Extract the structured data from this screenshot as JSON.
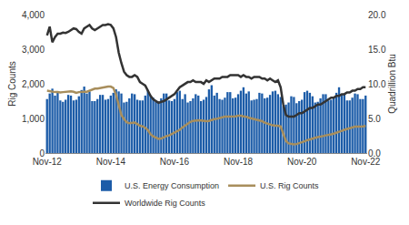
{
  "chart_data": {
    "type": "bar",
    "ylabel": "Rig Counts",
    "y2label": "Quadrillion Btu",
    "categories": [
      "Nov-12",
      null,
      null,
      null,
      null,
      null,
      null,
      null,
      null,
      null,
      null,
      null,
      null,
      null,
      null,
      null,
      null,
      null,
      null,
      null,
      null,
      null,
      null,
      null,
      "Nov-14",
      null,
      null,
      null,
      null,
      null,
      null,
      null,
      null,
      null,
      null,
      null,
      null,
      null,
      null,
      null,
      null,
      null,
      null,
      null,
      null,
      null,
      null,
      null,
      "Nov-16",
      null,
      null,
      null,
      null,
      null,
      null,
      null,
      null,
      null,
      null,
      null,
      null,
      null,
      null,
      null,
      null,
      null,
      null,
      null,
      null,
      null,
      null,
      null,
      "Nov-18",
      null,
      null,
      null,
      null,
      null,
      null,
      null,
      null,
      null,
      null,
      null,
      null,
      null,
      null,
      null,
      null,
      null,
      null,
      null,
      null,
      null,
      null,
      null,
      "Nov-20",
      null,
      null,
      null,
      null,
      null,
      null,
      null,
      null,
      null,
      null,
      null,
      null,
      null,
      null,
      null,
      null,
      null,
      null,
      null,
      null,
      null,
      null,
      null,
      "Nov-22"
    ],
    "series": [
      {
        "name": "U.S. Energy Consumption",
        "type": "bar",
        "color": "#1c5ca8",
        "axis": "y2",
        "values": [
          7.8,
          8.6,
          9.3,
          8.3,
          8.7,
          7.6,
          7.4,
          7.7,
          8.4,
          8.3,
          7.6,
          7.7,
          8.2,
          9.1,
          9.6,
          8.6,
          8.9,
          7.5,
          7.5,
          7.8,
          8.4,
          8.4,
          7.7,
          7.8,
          8.3,
          8.7,
          9.2,
          8.9,
          8.6,
          7.3,
          7.4,
          7.9,
          8.6,
          8.5,
          7.7,
          7.6,
          7.6,
          8.3,
          9.1,
          8.3,
          8.0,
          7.4,
          7.4,
          7.9,
          8.6,
          8.6,
          7.6,
          7.5,
          7.8,
          8.8,
          9.0,
          7.8,
          8.5,
          7.3,
          7.5,
          7.9,
          8.5,
          8.3,
          7.5,
          7.7,
          8.1,
          9.2,
          9.8,
          8.3,
          8.7,
          7.8,
          7.7,
          8.0,
          8.8,
          8.8,
          7.9,
          8.0,
          8.5,
          9.0,
          9.5,
          8.6,
          8.9,
          7.6,
          7.7,
          7.8,
          8.7,
          8.6,
          7.9,
          8.0,
          8.4,
          8.9,
          9.0,
          8.5,
          8.1,
          6.8,
          7.0,
          7.3,
          8.2,
          8.1,
          7.2,
          7.5,
          7.7,
          8.8,
          9.0,
          8.7,
          8.2,
          7.3,
          7.4,
          7.9,
          8.5,
          8.5,
          7.6,
          7.7,
          8.0,
          8.7,
          9.5,
          8.5,
          8.5,
          7.6,
          7.6,
          8.0,
          8.6,
          8.5,
          7.8,
          7.8,
          8.3
        ]
      },
      {
        "name": "U.S. Rig Counts",
        "type": "line",
        "color": "#a88e5c",
        "values": [
          1800,
          1780,
          1760,
          1760,
          1760,
          1750,
          1760,
          1770,
          1770,
          1780,
          1770,
          1740,
          1760,
          1770,
          1770,
          1770,
          1800,
          1830,
          1860,
          1860,
          1880,
          1900,
          1920,
          1920,
          1920,
          1880,
          1680,
          1350,
          1100,
          980,
          890,
          860,
          870,
          880,
          840,
          790,
          770,
          730,
          660,
          540,
          480,
          440,
          410,
          420,
          460,
          490,
          510,
          550,
          580,
          620,
          670,
          740,
          800,
          860,
          900,
          930,
          950,
          950,
          940,
          920,
          920,
          930,
          960,
          980,
          990,
          1010,
          1040,
          1050,
          1050,
          1050,
          1050,
          1060,
          1080,
          1080,
          1060,
          1050,
          1020,
          1000,
          980,
          970,
          950,
          920,
          880,
          850,
          810,
          800,
          790,
          790,
          770,
          540,
          350,
          280,
          260,
          250,
          260,
          280,
          310,
          340,
          370,
          400,
          420,
          440,
          460,
          470,
          490,
          510,
          520,
          540,
          560,
          580,
          600,
          640,
          670,
          690,
          720,
          750,
          760,
          760,
          760,
          770,
          780
        ]
      },
      {
        "name": "Worldwide Rig Counts",
        "type": "line",
        "color": "#333333",
        "values": [
          3400,
          3650,
          3200,
          3350,
          3450,
          3450,
          3480,
          3470,
          3500,
          3550,
          3600,
          3580,
          3500,
          3450,
          3600,
          3650,
          3700,
          3600,
          3550,
          3600,
          3650,
          3700,
          3700,
          3720,
          3700,
          3600,
          3350,
          2900,
          2600,
          2350,
          2250,
          2200,
          2200,
          2250,
          2200,
          2050,
          2000,
          1950,
          1800,
          1650,
          1550,
          1500,
          1450,
          1480,
          1500,
          1550,
          1600,
          1650,
          1700,
          1800,
          1900,
          1950,
          2000,
          2050,
          2050,
          2100,
          2050,
          2050,
          2050,
          2000,
          2100,
          2050,
          2100,
          2150,
          2150,
          2150,
          2200,
          2200,
          2200,
          2250,
          2250,
          2250,
          2250,
          2200,
          2250,
          2200,
          2200,
          2150,
          2200,
          2200,
          2200,
          2150,
          2150,
          2100,
          2150,
          2100,
          2050,
          2100,
          1900,
          1400,
          1100,
          1050,
          1050,
          1050,
          1100,
          1150,
          1150,
          1200,
          1250,
          1300,
          1300,
          1350,
          1400,
          1400,
          1450,
          1500,
          1550,
          1600,
          1600,
          1650,
          1650,
          1700,
          1700,
          1750,
          1750,
          1800,
          1800,
          1850,
          1850,
          1900,
          1900
        ]
      }
    ],
    "ylim": [
      0,
      4000
    ],
    "yticks": [
      0,
      {
        "value": 1000,
        "label": "1,000"
      },
      {
        "value": 2000,
        "label": "2,000"
      },
      {
        "value": 3000,
        "label": "3,000"
      },
      {
        "value": 4000,
        "label": "4,000"
      }
    ],
    "y2lim": [
      0,
      20
    ],
    "y2ticks": [
      {
        "value": 0,
        "label": "0.0"
      },
      {
        "value": 5,
        "label": "5.0"
      },
      {
        "value": 10,
        "label": "10.0"
      },
      {
        "value": 15,
        "label": "15.0"
      },
      {
        "value": 20,
        "label": "20.0"
      }
    ],
    "grid": false,
    "legend": "bottom"
  }
}
